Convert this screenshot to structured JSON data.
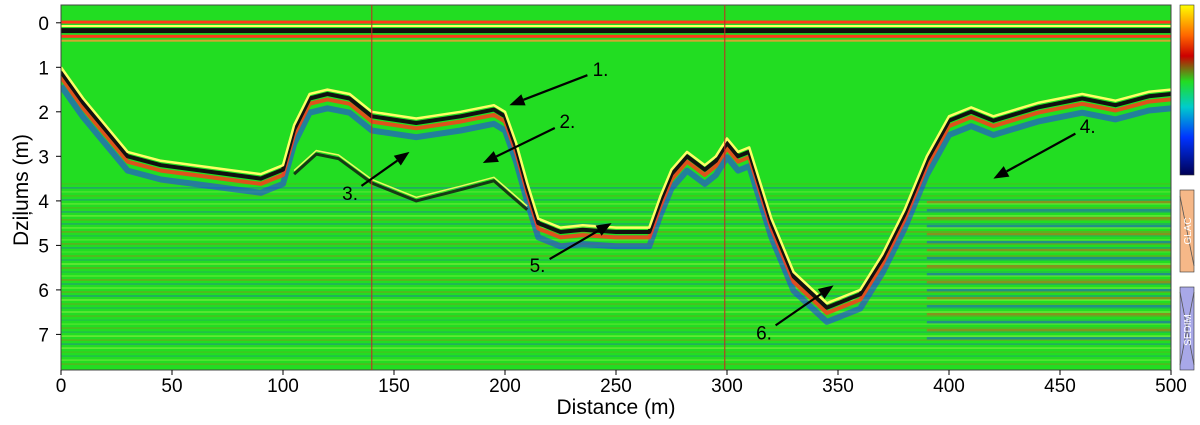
{
  "chart_data": {
    "type": "heatmap",
    "title": "",
    "xlabel": "Distance (m)",
    "ylabel": "Dziļums (m)",
    "xlim": [
      0,
      500
    ],
    "ylim": [
      7.8,
      -0.4
    ],
    "x_ticks": [
      "0",
      "50",
      "100",
      "150",
      "200",
      "250",
      "300",
      "350",
      "400",
      "450",
      "500"
    ],
    "y_ticks": [
      "0",
      "1",
      "2",
      "3",
      "4",
      "5",
      "6",
      "7"
    ],
    "section_boundaries_x": [
      140,
      299
    ],
    "bedrock_surface": {
      "x": [
        0,
        10,
        20,
        30,
        45,
        60,
        75,
        90,
        100,
        105,
        112,
        120,
        130,
        140,
        160,
        180,
        195,
        200,
        205,
        210,
        215,
        225,
        235,
        250,
        265,
        270,
        275,
        282,
        290,
        295,
        300,
        305,
        310,
        315,
        320,
        330,
        345,
        360,
        370,
        380,
        390,
        400,
        410,
        420,
        440,
        460,
        475,
        490,
        500
      ],
      "depth": [
        1.0,
        1.7,
        2.3,
        2.9,
        3.1,
        3.2,
        3.3,
        3.4,
        3.2,
        2.3,
        1.6,
        1.5,
        1.6,
        2.0,
        2.15,
        2.0,
        1.85,
        2.0,
        2.7,
        3.6,
        4.4,
        4.6,
        4.55,
        4.6,
        4.6,
        3.9,
        3.3,
        2.9,
        3.2,
        3.0,
        2.6,
        2.9,
        2.8,
        3.6,
        4.4,
        5.6,
        6.3,
        6.0,
        5.2,
        4.2,
        3.0,
        2.1,
        1.9,
        2.1,
        1.8,
        1.6,
        1.75,
        1.55,
        1.5
      ]
    },
    "annotations": [
      {
        "label": "1.",
        "x": 202,
        "depth": 1.85
      },
      {
        "label": "2.",
        "x": 190,
        "depth": 3.15
      },
      {
        "label": "3.",
        "x": 157,
        "depth": 2.9
      },
      {
        "label": "4.",
        "x": 420,
        "depth": 3.5
      },
      {
        "label": "5.",
        "x": 248,
        "depth": 4.5
      },
      {
        "label": "6.",
        "x": 348,
        "depth": 5.9
      }
    ],
    "colors": {
      "background": "#22dd22",
      "reflector_bright": "#ffff66",
      "reflector_dark": "#111111",
      "red": "#ff3a1a",
      "blue": "#2233ff"
    },
    "side_panels": [
      {
        "label": "GLAC",
        "color": "#f6b888"
      },
      {
        "label": "SEDIM",
        "color": "#a8a8e8"
      }
    ]
  }
}
